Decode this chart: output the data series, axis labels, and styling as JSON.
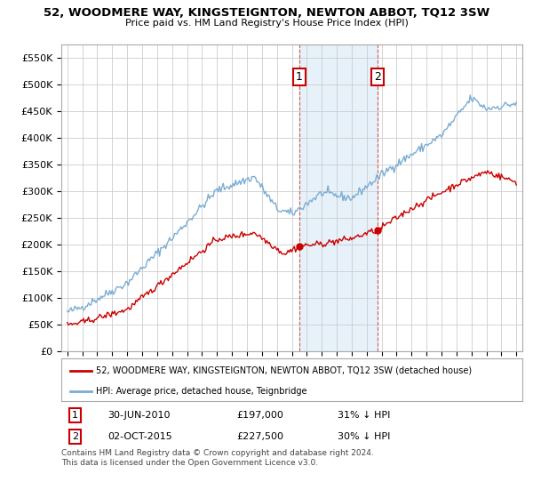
{
  "title": "52, WOODMERE WAY, KINGSTEIGNTON, NEWTON ABBOT, TQ12 3SW",
  "subtitle": "Price paid vs. HM Land Registry's House Price Index (HPI)",
  "legend_line1": "52, WOODMERE WAY, KINGSTEIGNTON, NEWTON ABBOT, TQ12 3SW (detached house)",
  "legend_line2": "HPI: Average price, detached house, Teignbridge",
  "footnote": "Contains HM Land Registry data © Crown copyright and database right 2024.\nThis data is licensed under the Open Government Licence v3.0.",
  "marker1_date": "30-JUN-2010",
  "marker1_price": "£197,000",
  "marker1_hpi": "31% ↓ HPI",
  "marker2_date": "02-OCT-2015",
  "marker2_price": "£227,500",
  "marker2_hpi": "30% ↓ HPI",
  "red_color": "#cc0000",
  "blue_color": "#7aadd4",
  "blue_fill_color": "#d6e8f5",
  "grid_color": "#cccccc",
  "bg_color": "#ffffff",
  "marker_box_color": "#cc0000",
  "ylim": [
    0,
    575000
  ],
  "yticks": [
    0,
    50000,
    100000,
    150000,
    200000,
    250000,
    300000,
    350000,
    400000,
    450000,
    500000,
    550000
  ],
  "sale1_x": 2010.5,
  "sale1_y": 197000,
  "sale2_x": 2015.75,
  "sale2_y": 227500,
  "vline1_x": 2010.5,
  "vline2_x": 2015.75,
  "xlim_left": 1994.6,
  "xlim_right": 2025.4
}
